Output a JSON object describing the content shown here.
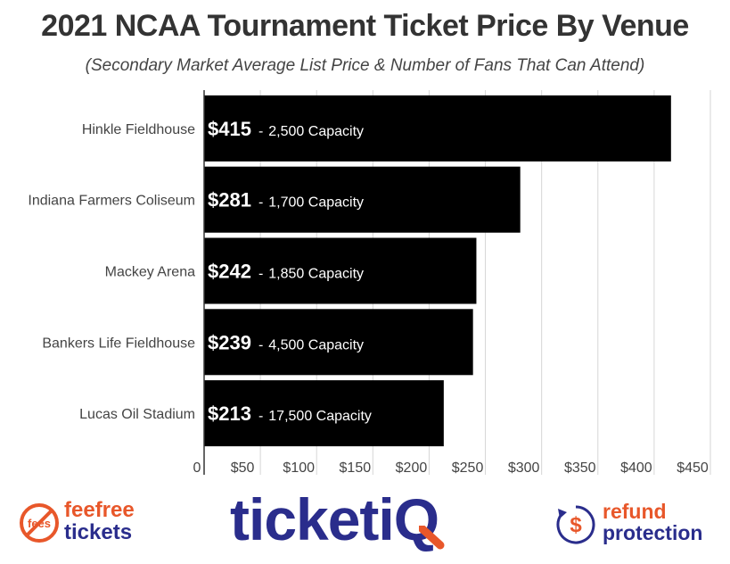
{
  "chart_data": {
    "type": "bar",
    "orientation": "horizontal",
    "title": "2021 NCAA Tournament Ticket Price By Venue",
    "subtitle": "(Secondary Market Average List Price & Number of Fans That Can Attend)",
    "categories": [
      "Hinkle Fieldhouse",
      "Indiana Farmers Coliseum",
      "Mackey Arena",
      "Bankers Life Fieldhouse",
      "Lucas Oil Stadium"
    ],
    "values": [
      415,
      281,
      242,
      239,
      213
    ],
    "value_labels": [
      "$415",
      "$281",
      "$242",
      "$239",
      "$213"
    ],
    "capacity_labels": [
      "2,500 Capacity",
      "1,700 Capacity",
      "1,850 Capacity",
      "4,500 Capacity",
      "17,500 Capacity"
    ],
    "separator": "-",
    "xlim": [
      0,
      450
    ],
    "xticks": [
      0,
      50,
      100,
      150,
      200,
      250,
      300,
      350,
      400,
      450
    ],
    "xtick_labels": [
      "0",
      "$50",
      "$100",
      "$150",
      "$200",
      "$250",
      "$300",
      "$350",
      "$400",
      "$450"
    ],
    "grid": true,
    "bar_color": "#000000"
  },
  "logos": {
    "feefree": {
      "badge": "fees",
      "line1": "feefree",
      "line2": "tickets",
      "color": "#e8572a",
      "color2": "#2a2d8c"
    },
    "ticketiq": {
      "text": "ticketi",
      "q": "Q",
      "color": "#2a2d8c",
      "accent": "#e8572a"
    },
    "refund": {
      "line1": "refund",
      "line2": "protection",
      "symbol": "$",
      "color": "#e8572a",
      "color2": "#2a2d8c"
    }
  }
}
